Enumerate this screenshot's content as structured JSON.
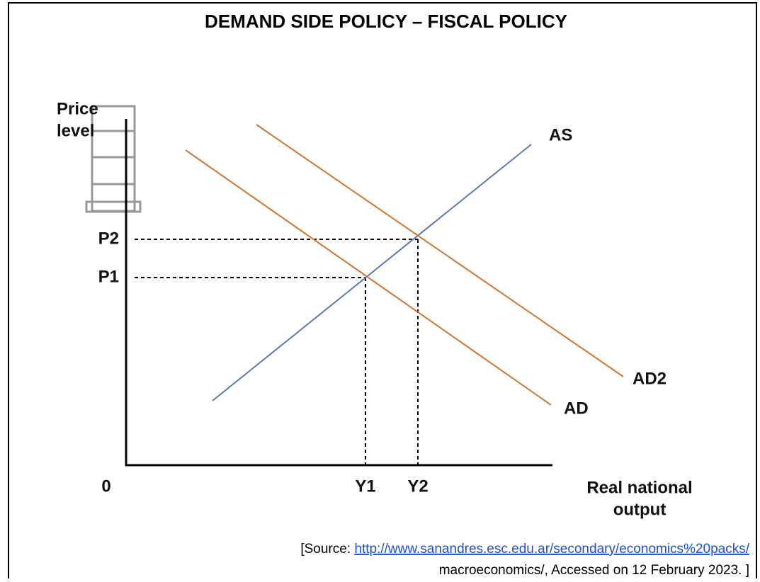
{
  "header": {
    "title": "DEMAND SIDE POLICY – FISCAL POLICY"
  },
  "axes": {
    "y_label": [
      "Price",
      "level"
    ],
    "x_label": [
      "Real national",
      "output"
    ],
    "origin": "0"
  },
  "curves": [
    {
      "label": "AS"
    },
    {
      "label": "AD"
    },
    {
      "label": "AD2"
    }
  ],
  "price_levels": [
    "P2",
    "P1"
  ],
  "outputs": [
    "Y1",
    "Y2"
  ],
  "source": {
    "prefix": "[Source: ",
    "link": "http://www.sanandres.esc.edu.ar/secondary/economics%20packs/",
    "line2": "macroeconomics/, Accessed on 12 February 2023. ]"
  }
}
